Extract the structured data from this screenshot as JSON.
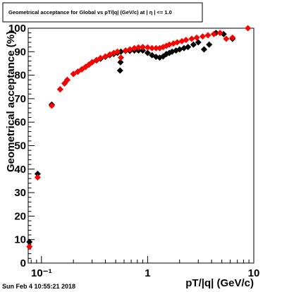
{
  "chart_data": {
    "type": "scatter",
    "title": "Geometrical acceptance for Global vs pT/|q| (GeV/c) at | η | <= 1.0",
    "xlabel": "pT/|q| (GeV/c)",
    "ylabel": "Geometrical acceptance (%)",
    "xscale": "log",
    "xlim": [
      0.075,
      10
    ],
    "ylim": [
      0,
      100
    ],
    "x_tick_labels": [
      "10⁻¹",
      "1",
      "10"
    ],
    "y_tick_labels": [
      "0",
      "10",
      "20",
      "30",
      "40",
      "50",
      "60",
      "70",
      "80",
      "90",
      "100"
    ],
    "grid": false,
    "legend": "none",
    "series": [
      {
        "color": "#000000",
        "marker": "diamond",
        "points": [
          [
            0.077,
            9
          ],
          [
            0.092,
            38
          ],
          [
            0.125,
            67.5
          ],
          [
            0.15,
            74
          ],
          [
            0.165,
            76.5
          ],
          [
            0.175,
            78
          ],
          [
            0.2,
            80.5
          ],
          [
            0.22,
            81.5
          ],
          [
            0.24,
            82.5
          ],
          [
            0.26,
            83.5
          ],
          [
            0.28,
            84.5
          ],
          [
            0.3,
            85.5
          ],
          [
            0.33,
            86.3
          ],
          [
            0.36,
            87
          ],
          [
            0.4,
            87.8
          ],
          [
            0.44,
            88.5
          ],
          [
            0.48,
            89
          ],
          [
            0.52,
            89.5
          ],
          [
            0.55,
            82
          ],
          [
            0.555,
            85.5
          ],
          [
            0.56,
            90
          ],
          [
            0.62,
            90.3
          ],
          [
            0.68,
            90.3
          ],
          [
            0.75,
            90.5
          ],
          [
            0.82,
            90.5
          ],
          [
            0.9,
            90.5
          ],
          [
            1.0,
            89.5
          ],
          [
            1.1,
            88.5
          ],
          [
            1.2,
            87.8
          ],
          [
            1.3,
            87.5
          ],
          [
            1.4,
            88
          ],
          [
            1.5,
            89
          ],
          [
            1.6,
            89.5
          ],
          [
            1.7,
            90
          ],
          [
            1.85,
            90.5
          ],
          [
            2.0,
            91
          ],
          [
            2.2,
            91.5
          ],
          [
            2.4,
            92
          ],
          [
            2.7,
            93
          ],
          [
            3.0,
            94
          ],
          [
            3.4,
            91
          ],
          [
            3.8,
            93
          ],
          [
            4.4,
            98
          ],
          [
            5.2,
            97.5
          ],
          [
            6.3,
            95.5
          ]
        ]
      },
      {
        "color": "#ff0000",
        "marker": "diamond",
        "points": [
          [
            0.077,
            7
          ],
          [
            0.092,
            36.5
          ],
          [
            0.125,
            67
          ],
          [
            0.15,
            74
          ],
          [
            0.165,
            76.5
          ],
          [
            0.175,
            78
          ],
          [
            0.2,
            80.5
          ],
          [
            0.22,
            81.5
          ],
          [
            0.24,
            82.5
          ],
          [
            0.26,
            83.5
          ],
          [
            0.28,
            84.5
          ],
          [
            0.3,
            85.5
          ],
          [
            0.33,
            86.5
          ],
          [
            0.36,
            87.3
          ],
          [
            0.4,
            88
          ],
          [
            0.44,
            88.8
          ],
          [
            0.48,
            89.5
          ],
          [
            0.52,
            90
          ],
          [
            0.56,
            87.5
          ],
          [
            0.62,
            90.5
          ],
          [
            0.68,
            91
          ],
          [
            0.75,
            91.5
          ],
          [
            0.82,
            91.8
          ],
          [
            0.9,
            92
          ],
          [
            1.0,
            91.8
          ],
          [
            1.1,
            91.5
          ],
          [
            1.2,
            91.5
          ],
          [
            1.3,
            91.5
          ],
          [
            1.4,
            92
          ],
          [
            1.5,
            92.5
          ],
          [
            1.6,
            93
          ],
          [
            1.75,
            93.5
          ],
          [
            1.9,
            94
          ],
          [
            2.1,
            94.5
          ],
          [
            2.3,
            95
          ],
          [
            2.6,
            95.5
          ],
          [
            2.9,
            96
          ],
          [
            3.3,
            96.5
          ],
          [
            3.7,
            97
          ],
          [
            4.2,
            97.5
          ],
          [
            4.8,
            98
          ],
          [
            5.5,
            95.5
          ],
          [
            6.3,
            96
          ],
          [
            8.8,
            100
          ]
        ]
      }
    ]
  },
  "footer": {
    "date": "Sun Feb  4 10:55:21 2018"
  }
}
